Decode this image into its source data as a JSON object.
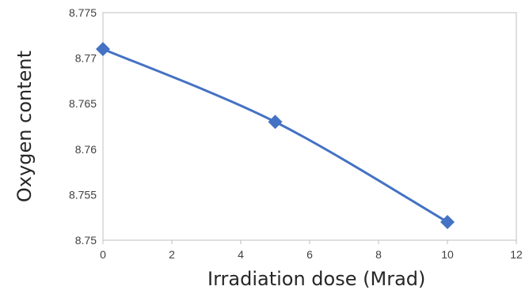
{
  "chart_data": {
    "type": "line",
    "title": "",
    "xlabel": "Irradiation dose (Mrad)",
    "ylabel": "Oxygen content",
    "xlim": [
      0,
      12
    ],
    "ylim": [
      8.75,
      8.775
    ],
    "x_ticks": [
      "0",
      "2",
      "4",
      "6",
      "8",
      "10",
      "12"
    ],
    "y_ticks": [
      "8.75",
      "8.755",
      "8.76",
      "8.765",
      "8.77",
      "8.775"
    ],
    "grid": false,
    "legend": "none",
    "marker": "diamond",
    "series": [
      {
        "x": [
          0,
          5,
          10
        ],
        "y": [
          8.771,
          8.763,
          8.752
        ],
        "color": "#4472C4"
      }
    ]
  }
}
